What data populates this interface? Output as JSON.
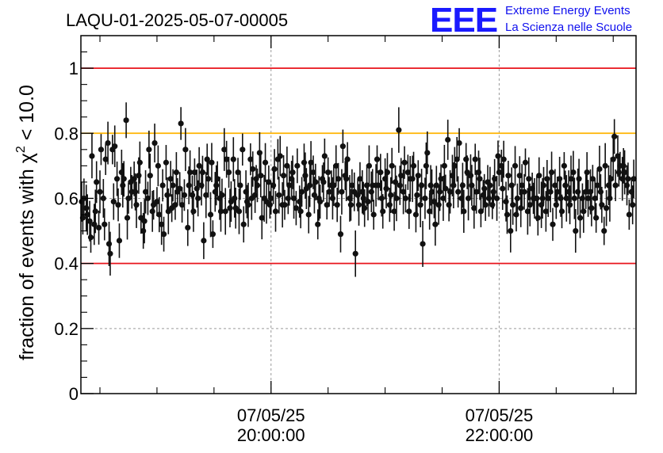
{
  "logo": {
    "mark": "EEE",
    "line1": "Extreme Energy Events",
    "line2": "La Scienza nelle Scuole"
  },
  "chart_data": {
    "type": "scatter",
    "title": "LAQU-01-2025-05-07-00005",
    "ylabel_main": "fraction of events with χ",
    "ylabel_sup": "2",
    "ylabel_tail": " < 10.0",
    "xlim_hours": [
      18.333,
      23.2
    ],
    "ylim": [
      0,
      1.1
    ],
    "yticks": [
      {
        "value": 0,
        "label": "0"
      },
      {
        "value": 0.2,
        "label": "0.2"
      },
      {
        "value": 0.4,
        "label": "0.4"
      },
      {
        "value": 0.6,
        "label": "0.6"
      },
      {
        "value": 0.8,
        "label": "0.8"
      },
      {
        "value": 1,
        "label": "1"
      }
    ],
    "xticks_major": [
      {
        "hour": 20,
        "date": "07/05/25",
        "time": "20:00:00"
      },
      {
        "hour": 22,
        "date": "07/05/25",
        "time": "22:00:00"
      }
    ],
    "xticks_minor_hours": [
      18.5,
      19.0,
      19.5,
      20.5,
      21.0,
      21.5,
      22.5,
      23.0
    ],
    "grid": true,
    "reference_lines": [
      {
        "y": 1.0,
        "color": "#e8141c"
      },
      {
        "y": 0.8,
        "color": "#ffb400"
      },
      {
        "y": 0.4,
        "color": "#e8141c"
      }
    ],
    "marker_color": "#111111",
    "points": [
      [
        18.34,
        0.59
      ],
      [
        18.35,
        0.54
      ],
      [
        18.36,
        0.6
      ],
      [
        18.38,
        0.57
      ],
      [
        18.39,
        0.55
      ],
      [
        18.41,
        0.53
      ],
      [
        18.42,
        0.48
      ],
      [
        18.43,
        0.73
      ],
      [
        18.45,
        0.52
      ],
      [
        18.46,
        0.56
      ],
      [
        18.47,
        0.65
      ],
      [
        18.49,
        0.51
      ],
      [
        18.5,
        0.62
      ],
      [
        18.51,
        0.75
      ],
      [
        18.53,
        0.6
      ],
      [
        18.54,
        0.52
      ],
      [
        18.55,
        0.72
      ],
      [
        18.57,
        0.77
      ],
      [
        18.58,
        0.46
      ],
      [
        18.59,
        0.43
      ],
      [
        18.61,
        0.75
      ],
      [
        18.62,
        0.59
      ],
      [
        18.63,
        0.76
      ],
      [
        18.65,
        0.66
      ],
      [
        18.66,
        0.58
      ],
      [
        18.67,
        0.47
      ],
      [
        18.69,
        0.68
      ],
      [
        18.7,
        0.64
      ],
      [
        18.71,
        0.66
      ],
      [
        18.73,
        0.84
      ],
      [
        18.74,
        0.54
      ],
      [
        18.75,
        0.6
      ],
      [
        18.77,
        0.65
      ],
      [
        18.78,
        0.62
      ],
      [
        18.8,
        0.66
      ],
      [
        18.81,
        0.62
      ],
      [
        18.82,
        0.58
      ],
      [
        18.84,
        0.67
      ],
      [
        18.85,
        0.71
      ],
      [
        18.86,
        0.54
      ],
      [
        18.88,
        0.5
      ],
      [
        18.89,
        0.53
      ],
      [
        18.9,
        0.62
      ],
      [
        18.92,
        0.6
      ],
      [
        18.93,
        0.75
      ],
      [
        18.94,
        0.67
      ],
      [
        18.96,
        0.56
      ],
      [
        18.97,
        0.58
      ],
      [
        18.98,
        0.77
      ],
      [
        19.0,
        0.59
      ],
      [
        19.01,
        0.7
      ],
      [
        19.02,
        0.55
      ],
      [
        19.04,
        0.52
      ],
      [
        19.05,
        0.64
      ],
      [
        19.06,
        0.49
      ],
      [
        19.08,
        0.71
      ],
      [
        19.09,
        0.61
      ],
      [
        19.1,
        0.56
      ],
      [
        19.12,
        0.66
      ],
      [
        19.13,
        0.57
      ],
      [
        19.14,
        0.64
      ],
      [
        19.16,
        0.58
      ],
      [
        19.17,
        0.68
      ],
      [
        19.18,
        0.62
      ],
      [
        19.2,
        0.63
      ],
      [
        19.21,
        0.83
      ],
      [
        19.22,
        0.58
      ],
      [
        19.24,
        0.61
      ],
      [
        19.25,
        0.75
      ],
      [
        19.27,
        0.51
      ],
      [
        19.28,
        0.64
      ],
      [
        19.29,
        0.68
      ],
      [
        19.31,
        0.61
      ],
      [
        19.32,
        0.56
      ],
      [
        19.33,
        0.68
      ],
      [
        19.35,
        0.63
      ],
      [
        19.36,
        0.6
      ],
      [
        19.37,
        0.7
      ],
      [
        19.39,
        0.64
      ],
      [
        19.4,
        0.68
      ],
      [
        19.41,
        0.47
      ],
      [
        19.43,
        0.61
      ],
      [
        19.44,
        0.72
      ],
      [
        19.45,
        0.66
      ],
      [
        19.47,
        0.55
      ],
      [
        19.48,
        0.71
      ],
      [
        19.49,
        0.49
      ],
      [
        19.51,
        0.62
      ],
      [
        19.52,
        0.64
      ],
      [
        19.53,
        0.66
      ],
      [
        19.55,
        0.6
      ],
      [
        19.56,
        0.56
      ],
      [
        19.57,
        0.61
      ],
      [
        19.59,
        0.75
      ],
      [
        19.6,
        0.56
      ],
      [
        19.61,
        0.72
      ],
      [
        19.63,
        0.68
      ],
      [
        19.64,
        0.57
      ],
      [
        19.65,
        0.59
      ],
      [
        19.67,
        0.72
      ],
      [
        19.68,
        0.6
      ],
      [
        19.69,
        0.57
      ],
      [
        19.71,
        0.68
      ],
      [
        19.72,
        0.56
      ],
      [
        19.73,
        0.64
      ],
      [
        19.75,
        0.75
      ],
      [
        19.76,
        0.52
      ],
      [
        19.78,
        0.62
      ],
      [
        19.79,
        0.59
      ],
      [
        19.8,
        0.58
      ],
      [
        19.82,
        0.72
      ],
      [
        19.83,
        0.6
      ],
      [
        19.84,
        0.69
      ],
      [
        19.86,
        0.61
      ],
      [
        19.87,
        0.66
      ],
      [
        19.88,
        0.64
      ],
      [
        19.9,
        0.74
      ],
      [
        19.91,
        0.67
      ],
      [
        19.92,
        0.54
      ],
      [
        19.94,
        0.6
      ],
      [
        19.95,
        0.71
      ],
      [
        19.96,
        0.59
      ],
      [
        19.98,
        0.65
      ],
      [
        19.99,
        0.58
      ],
      [
        20.0,
        0.6
      ],
      [
        20.02,
        0.64
      ],
      [
        20.03,
        0.69
      ],
      [
        20.04,
        0.56
      ],
      [
        20.06,
        0.72
      ],
      [
        20.07,
        0.61
      ],
      [
        20.08,
        0.73
      ],
      [
        20.1,
        0.58
      ],
      [
        20.11,
        0.67
      ],
      [
        20.12,
        0.58
      ],
      [
        20.14,
        0.7
      ],
      [
        20.15,
        0.6
      ],
      [
        20.16,
        0.64
      ],
      [
        20.18,
        0.66
      ],
      [
        20.19,
        0.68
      ],
      [
        20.2,
        0.6
      ],
      [
        20.22,
        0.57
      ],
      [
        20.23,
        0.7
      ],
      [
        20.25,
        0.59
      ],
      [
        20.26,
        0.56
      ],
      [
        20.27,
        0.62
      ],
      [
        20.29,
        0.71
      ],
      [
        20.3,
        0.67
      ],
      [
        20.31,
        0.63
      ],
      [
        20.33,
        0.55
      ],
      [
        20.34,
        0.64
      ],
      [
        20.35,
        0.71
      ],
      [
        20.37,
        0.68
      ],
      [
        20.38,
        0.61
      ],
      [
        20.39,
        0.65
      ],
      [
        20.41,
        0.52
      ],
      [
        20.42,
        0.6
      ],
      [
        20.43,
        0.59
      ],
      [
        20.45,
        0.66
      ],
      [
        20.46,
        0.65
      ],
      [
        20.47,
        0.73
      ],
      [
        20.49,
        0.58
      ],
      [
        20.5,
        0.68
      ],
      [
        20.51,
        0.62
      ],
      [
        20.53,
        0.64
      ],
      [
        20.54,
        0.6
      ],
      [
        20.55,
        0.64
      ],
      [
        20.57,
        0.7
      ],
      [
        20.58,
        0.58
      ],
      [
        20.59,
        0.66
      ],
      [
        20.61,
        0.49
      ],
      [
        20.62,
        0.62
      ],
      [
        20.63,
        0.76
      ],
      [
        20.65,
        0.67
      ],
      [
        20.66,
        0.66
      ],
      [
        20.67,
        0.72
      ],
      [
        20.69,
        0.6
      ],
      [
        20.7,
        0.58
      ],
      [
        20.71,
        0.64
      ],
      [
        20.73,
        0.62
      ],
      [
        20.74,
        0.43
      ],
      [
        20.76,
        0.61
      ],
      [
        20.77,
        0.58
      ],
      [
        20.78,
        0.66
      ],
      [
        20.8,
        0.62
      ],
      [
        20.81,
        0.6
      ],
      [
        20.82,
        0.57
      ],
      [
        20.84,
        0.64
      ],
      [
        20.85,
        0.59
      ],
      [
        20.86,
        0.7
      ],
      [
        20.88,
        0.62
      ],
      [
        20.89,
        0.64
      ],
      [
        20.9,
        0.55
      ],
      [
        20.92,
        0.64
      ],
      [
        20.93,
        0.72
      ],
      [
        20.94,
        0.64
      ],
      [
        20.96,
        0.68
      ],
      [
        20.97,
        0.6
      ],
      [
        20.98,
        0.56
      ],
      [
        21.0,
        0.66
      ],
      [
        21.01,
        0.63
      ],
      [
        21.02,
        0.68
      ],
      [
        21.04,
        0.58
      ],
      [
        21.05,
        0.61
      ],
      [
        21.06,
        0.7
      ],
      [
        21.08,
        0.56
      ],
      [
        21.09,
        0.65
      ],
      [
        21.1,
        0.6
      ],
      [
        21.12,
        0.81
      ],
      [
        21.13,
        0.64
      ],
      [
        21.14,
        0.67
      ],
      [
        21.16,
        0.62
      ],
      [
        21.17,
        0.71
      ],
      [
        21.18,
        0.6
      ],
      [
        21.2,
        0.68
      ],
      [
        21.21,
        0.56
      ],
      [
        21.22,
        0.66
      ],
      [
        21.24,
        0.66
      ],
      [
        21.25,
        0.7
      ],
      [
        21.27,
        0.55
      ],
      [
        21.28,
        0.61
      ],
      [
        21.29,
        0.67
      ],
      [
        21.31,
        0.58
      ],
      [
        21.32,
        0.64
      ],
      [
        21.33,
        0.46
      ],
      [
        21.35,
        0.6
      ],
      [
        21.36,
        0.7
      ],
      [
        21.37,
        0.74
      ],
      [
        21.39,
        0.56
      ],
      [
        21.4,
        0.64
      ],
      [
        21.41,
        0.62
      ],
      [
        21.43,
        0.59
      ],
      [
        21.44,
        0.52
      ],
      [
        21.45,
        0.64
      ],
      [
        21.47,
        0.58
      ],
      [
        21.48,
        0.62
      ],
      [
        21.49,
        0.66
      ],
      [
        21.51,
        0.6
      ],
      [
        21.52,
        0.7
      ],
      [
        21.53,
        0.63
      ],
      [
        21.55,
        0.78
      ],
      [
        21.56,
        0.58
      ],
      [
        21.57,
        0.62
      ],
      [
        21.59,
        0.67
      ],
      [
        21.6,
        0.64
      ],
      [
        21.61,
        0.7
      ],
      [
        21.63,
        0.72
      ],
      [
        21.64,
        0.62
      ],
      [
        21.65,
        0.77
      ],
      [
        21.67,
        0.6
      ],
      [
        21.68,
        0.64
      ],
      [
        21.69,
        0.56
      ],
      [
        21.71,
        0.72
      ],
      [
        21.72,
        0.68
      ],
      [
        21.73,
        0.6
      ],
      [
        21.75,
        0.67
      ],
      [
        21.76,
        0.64
      ],
      [
        21.78,
        0.57
      ],
      [
        21.79,
        0.72
      ],
      [
        21.8,
        0.62
      ],
      [
        21.82,
        0.68
      ],
      [
        21.83,
        0.66
      ],
      [
        21.84,
        0.56
      ],
      [
        21.86,
        0.61
      ],
      [
        21.87,
        0.63
      ],
      [
        21.88,
        0.58
      ],
      [
        21.9,
        0.65
      ],
      [
        21.91,
        0.6
      ],
      [
        21.92,
        0.64
      ],
      [
        21.94,
        0.58
      ],
      [
        21.95,
        0.62
      ],
      [
        21.96,
        0.66
      ],
      [
        21.98,
        0.6
      ],
      [
        21.99,
        0.73
      ],
      [
        22.0,
        0.68
      ],
      [
        22.02,
        0.7
      ],
      [
        22.03,
        0.63
      ],
      [
        22.04,
        0.72
      ],
      [
        22.06,
        0.59
      ],
      [
        22.07,
        0.55
      ],
      [
        22.08,
        0.67
      ],
      [
        22.1,
        0.5
      ],
      [
        22.11,
        0.64
      ],
      [
        22.12,
        0.58
      ],
      [
        22.14,
        0.7
      ],
      [
        22.15,
        0.55
      ],
      [
        22.16,
        0.6
      ],
      [
        22.18,
        0.67
      ],
      [
        22.19,
        0.57
      ],
      [
        22.2,
        0.64
      ],
      [
        22.22,
        0.62
      ],
      [
        22.23,
        0.71
      ],
      [
        22.25,
        0.56
      ],
      [
        22.26,
        0.66
      ],
      [
        22.27,
        0.58
      ],
      [
        22.29,
        0.63
      ],
      [
        22.3,
        0.6
      ],
      [
        22.31,
        0.6
      ],
      [
        22.33,
        0.6
      ],
      [
        22.34,
        0.54
      ],
      [
        22.35,
        0.67
      ],
      [
        22.37,
        0.58
      ],
      [
        22.38,
        0.6
      ],
      [
        22.39,
        0.64
      ],
      [
        22.41,
        0.56
      ],
      [
        22.42,
        0.66
      ],
      [
        22.43,
        0.6
      ],
      [
        22.45,
        0.62
      ],
      [
        22.46,
        0.68
      ],
      [
        22.47,
        0.52
      ],
      [
        22.49,
        0.64
      ],
      [
        22.5,
        0.58
      ],
      [
        22.51,
        0.62
      ],
      [
        22.53,
        0.66
      ],
      [
        22.54,
        0.6
      ],
      [
        22.55,
        0.56
      ],
      [
        22.57,
        0.7
      ],
      [
        22.58,
        0.64
      ],
      [
        22.59,
        0.6
      ],
      [
        22.61,
        0.62
      ],
      [
        22.62,
        0.58
      ],
      [
        22.63,
        0.66
      ],
      [
        22.65,
        0.68
      ],
      [
        22.66,
        0.6
      ],
      [
        22.67,
        0.5
      ],
      [
        22.69,
        0.62
      ],
      [
        22.7,
        0.66
      ],
      [
        22.71,
        0.54
      ],
      [
        22.73,
        0.6
      ],
      [
        22.74,
        0.56
      ],
      [
        22.76,
        0.62
      ],
      [
        22.77,
        0.68
      ],
      [
        22.78,
        0.6
      ],
      [
        22.8,
        0.62
      ],
      [
        22.81,
        0.57
      ],
      [
        22.82,
        0.66
      ],
      [
        22.84,
        0.6
      ],
      [
        22.85,
        0.54
      ],
      [
        22.86,
        0.64
      ],
      [
        22.88,
        0.69
      ],
      [
        22.89,
        0.62
      ],
      [
        22.9,
        0.58
      ],
      [
        22.92,
        0.5
      ],
      [
        22.93,
        0.7
      ],
      [
        22.94,
        0.57
      ],
      [
        22.96,
        0.64
      ],
      [
        22.97,
        0.6
      ],
      [
        22.98,
        0.66
      ],
      [
        23.0,
        0.72
      ],
      [
        23.01,
        0.79
      ],
      [
        23.02,
        0.64
      ],
      [
        23.04,
        0.73
      ],
      [
        23.05,
        0.68
      ],
      [
        23.06,
        0.7
      ],
      [
        23.08,
        0.66
      ],
      [
        23.09,
        0.7
      ],
      [
        23.1,
        0.68
      ],
      [
        23.12,
        0.64
      ],
      [
        23.13,
        0.66
      ],
      [
        23.14,
        0.55
      ],
      [
        23.16,
        0.62
      ],
      [
        23.17,
        0.58
      ],
      [
        23.18,
        0.66
      ]
    ]
  }
}
